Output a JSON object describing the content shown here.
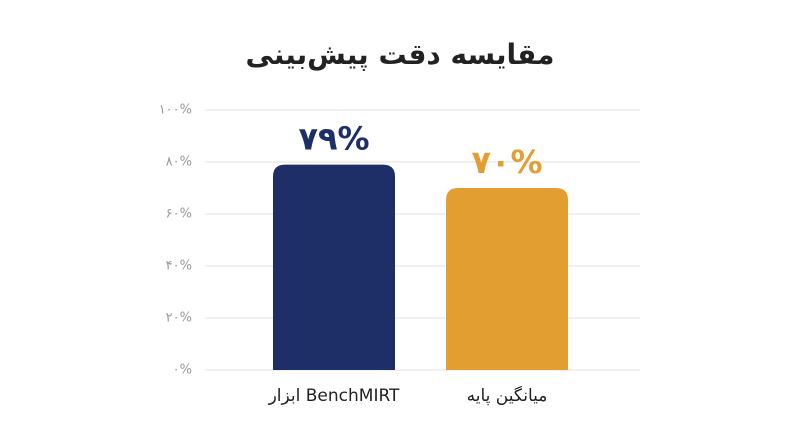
{
  "chart_data": {
    "type": "bar",
    "title": "مقایسه دقت پیش‌بینی",
    "categories": [
      "ابزار BenchMIRT",
      "میانگین پایه"
    ],
    "values": [
      79,
      70
    ],
    "value_labels": [
      "۷۹%",
      "۷۰%"
    ],
    "colors": [
      "#1d2f66",
      "#e39e31"
    ],
    "ylim": [
      0,
      100
    ],
    "yticks": [
      {
        "value": 0,
        "label": "۰%"
      },
      {
        "value": 20,
        "label": "۲۰%"
      },
      {
        "value": 40,
        "label": "۴۰%"
      },
      {
        "value": 60,
        "label": "۶۰%"
      },
      {
        "value": 80,
        "label": "۸۰%"
      },
      {
        "value": 100,
        "label": "۱۰۰%"
      }
    ],
    "grid": true
  }
}
